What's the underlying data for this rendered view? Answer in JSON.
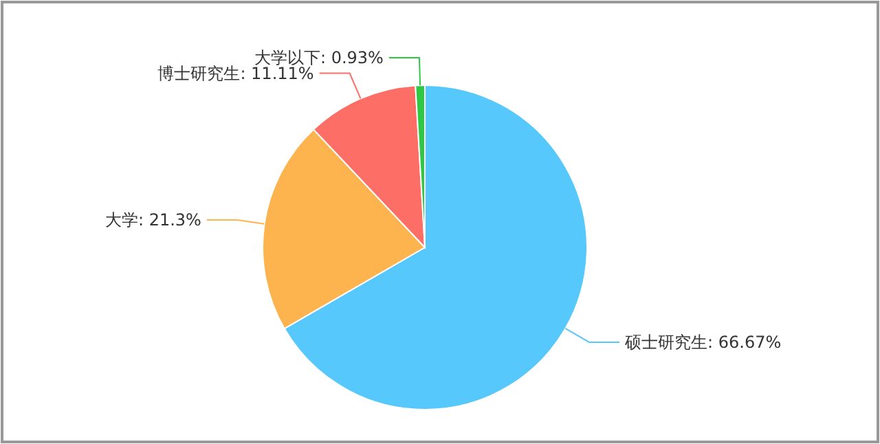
{
  "chart_data": {
    "type": "pie",
    "categories": [
      "硕士研究生",
      "大学",
      "博士研究生",
      "大学以下"
    ],
    "values": [
      66.67,
      21.3,
      11.11,
      0.93
    ],
    "colors": [
      "#56c8fb",
      "#fdb44e",
      "#fd6f66",
      "#2ec844"
    ],
    "value_labels": [
      "66.67%",
      "21.3%",
      "11.11%",
      "0.93%"
    ]
  }
}
